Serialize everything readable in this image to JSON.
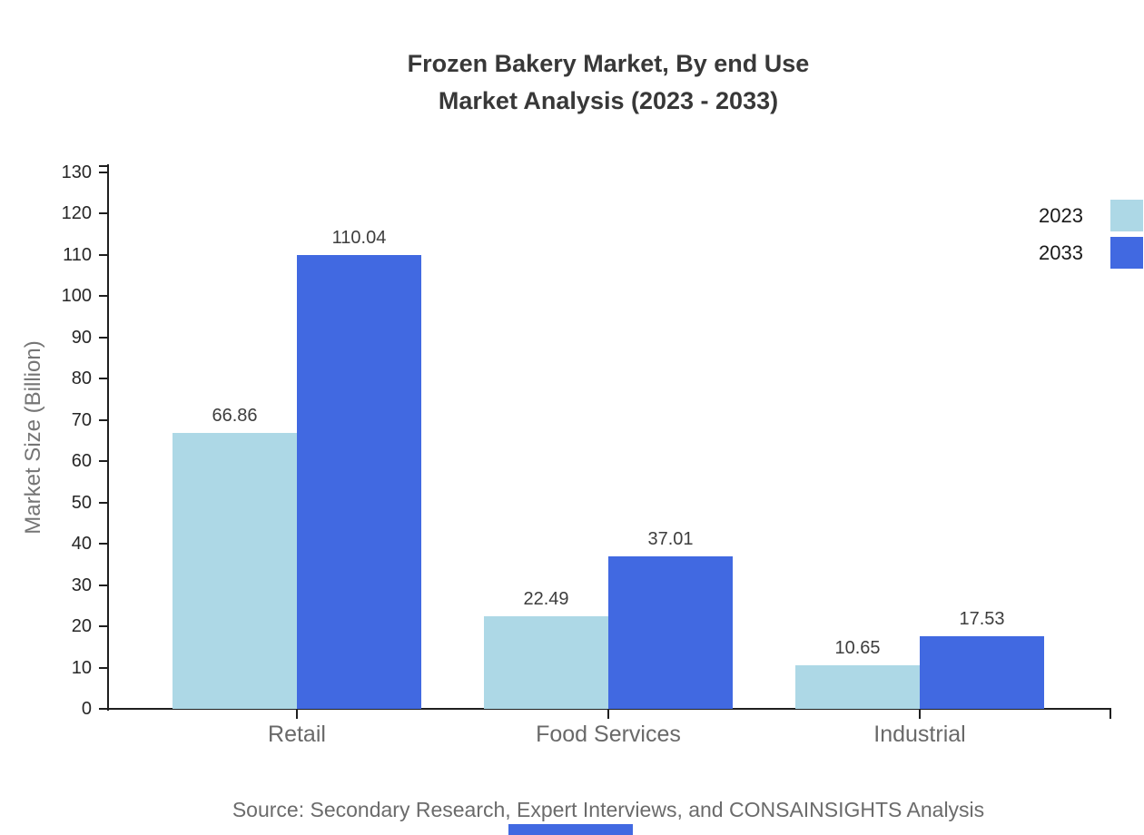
{
  "title": {
    "line1": "Frozen Bakery Market, By end Use",
    "line2": "Market Analysis (2023 - 2033)"
  },
  "legend": {
    "items": [
      {
        "label": "2023"
      },
      {
        "label": "2033"
      }
    ]
  },
  "source": "Source: Secondary Research, Expert Interviews, and CONSAINSIGHTS Analysis",
  "footer_bar": {
    "color": "#4169e1"
  },
  "colors": {
    "series_2023": "#add8e6",
    "series_2033": "#4169e1",
    "axis": "#1f1f1f"
  },
  "chart_data": {
    "type": "bar",
    "title": "Frozen Bakery Market, By end Use Market Analysis (2023 - 2033)",
    "categories": [
      "Retail",
      "Food Services",
      "Industrial"
    ],
    "series": [
      {
        "name": "2023",
        "color": "#add8e6",
        "values": [
          66.86,
          22.49,
          10.65
        ]
      },
      {
        "name": "2033",
        "color": "#4169e1",
        "values": [
          110.04,
          37.01,
          17.53
        ]
      }
    ],
    "xlabel": "",
    "ylabel": "Market Size (Billion)",
    "ylim": [
      0,
      130
    ],
    "ytick_step": 10,
    "grid": false,
    "legend_position": "top-right",
    "bar_value_labels": true
  }
}
